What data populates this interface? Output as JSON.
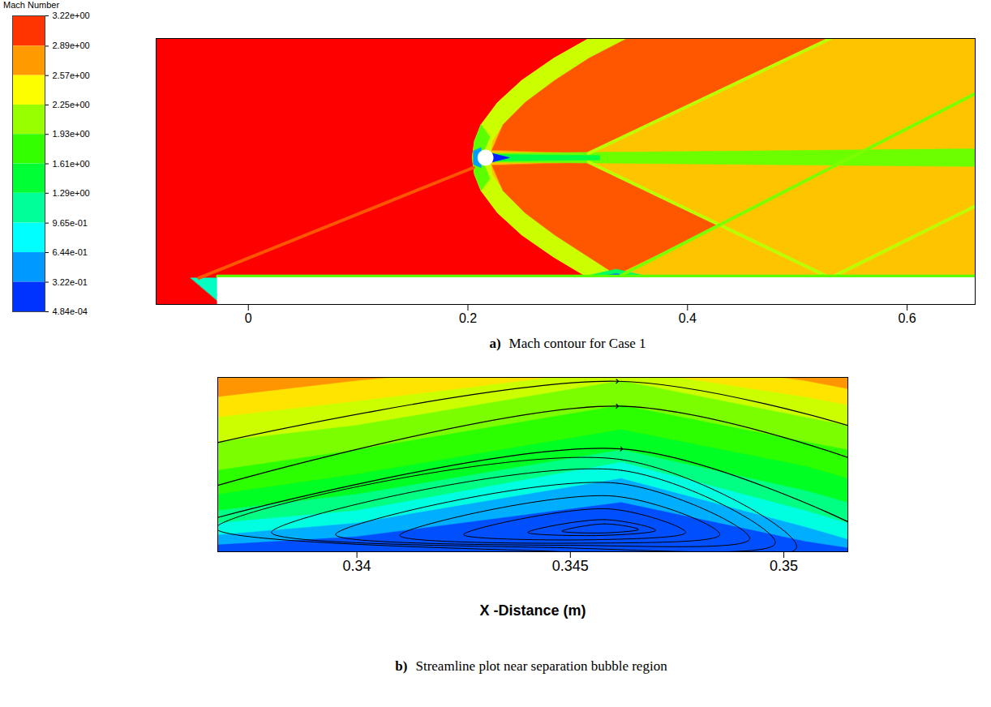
{
  "chart_data": [
    {
      "type": "contour",
      "caption_label": "a)",
      "caption": "Mach contour for Case 1",
      "xlim": [
        -0.084,
        0.662
      ],
      "ylim": [
        -0.024,
        0.217
      ],
      "xticks": [
        0,
        0.2,
        0.4,
        0.6
      ],
      "tick_labels": "x",
      "colorbar": {
        "title": "Mach Number",
        "range": [
          0.000484,
          3.22
        ],
        "ticks": [
          {
            "value": 3.22,
            "label": "3.22e+00"
          },
          {
            "value": 2.89,
            "label": "2.89e+00"
          },
          {
            "value": 2.57,
            "label": "2.57e+00"
          },
          {
            "value": 2.25,
            "label": "2.25e+00"
          },
          {
            "value": 1.93,
            "label": "1.93e+00"
          },
          {
            "value": 1.61,
            "label": "1.61e+00"
          },
          {
            "value": 1.29,
            "label": "1.29e+00"
          },
          {
            "value": 0.965,
            "label": "9.65e-01"
          },
          {
            "value": 0.644,
            "label": "6.44e-01"
          },
          {
            "value": 0.322,
            "label": "3.22e-01"
          },
          {
            "value": 0.000484,
            "label": "4.84e-04"
          }
        ]
      },
      "regions": [
        {
          "value": 3.22,
          "x": [
            -0.084,
            0.662,
            0.662,
            -0.084
          ],
          "y": [
            -0.024,
            -0.024,
            0.217,
            0.217
          ]
        },
        {
          "value": 2.6,
          "x": [
            0.31,
            0.278,
            0.249,
            0.227,
            0.212,
            0.206,
            0.204,
            0.206,
            0.212,
            0.227,
            0.249,
            0.278,
            0.31,
            0.662,
            0.662
          ],
          "y": [
            0.217,
            0.199,
            0.179,
            0.159,
            0.139,
            0.124,
            0.109,
            0.094,
            0.079,
            0.059,
            0.039,
            0.019,
            0.0,
            0.0,
            0.217
          ]
        },
        {
          "value": 2.25,
          "x": [
            0.31,
            0.278,
            0.249,
            0.227,
            0.212,
            0.206,
            0.204,
            0.206,
            0.212,
            0.227,
            0.249,
            0.278,
            0.31,
            0.345,
            0.31,
            0.279,
            0.252,
            0.232,
            0.222,
            0.22,
            0.222,
            0.232,
            0.252,
            0.279,
            0.31,
            0.345
          ],
          "y": [
            0.217,
            0.199,
            0.179,
            0.159,
            0.139,
            0.124,
            0.109,
            0.094,
            0.079,
            0.059,
            0.039,
            0.019,
            0.0,
            0.0,
            0.019,
            0.039,
            0.059,
            0.079,
            0.094,
            0.109,
            0.124,
            0.139,
            0.159,
            0.179,
            0.199,
            0.217
          ]
        },
        {
          "value": 2.95,
          "x": [
            0.222,
            0.232,
            0.252,
            0.279,
            0.31,
            0.345,
            0.53,
            0.31
          ],
          "y": [
            0.116,
            0.139,
            0.159,
            0.179,
            0.199,
            0.217,
            0.217,
            0.113
          ]
        },
        {
          "value": 2.95,
          "x": [
            0.222,
            0.232,
            0.252,
            0.279,
            0.31,
            0.335,
            0.429,
            0.31
          ],
          "y": [
            0.102,
            0.079,
            0.059,
            0.039,
            0.019,
            0.003,
            0.048,
            0.105
          ]
        },
        {
          "value": 1.95,
          "x": [
            0.222,
            0.662,
            0.662,
            0.222
          ],
          "y": [
            0.113,
            0.117,
            0.101,
            0.105
          ]
        },
        {
          "value": 1.4,
          "x": [
            0.222,
            0.32,
            0.32,
            0.222
          ],
          "y": [
            0.112,
            0.111,
            0.107,
            0.106
          ]
        },
        {
          "value": 0.1,
          "x": [
            0.222,
            0.238,
            0.222
          ],
          "y": [
            0.113,
            0.109,
            0.105
          ]
        },
        {
          "value": 1.9,
          "x": [
            0.206,
            0.204,
            0.206,
            0.212,
            0.22,
            0.216,
            0.212,
            0.216,
            0.22,
            0.212
          ],
          "y": [
            0.124,
            0.109,
            0.094,
            0.079,
            0.09,
            0.1,
            0.109,
            0.118,
            0.128,
            0.139
          ]
        },
        {
          "value": 0.5,
          "x": [
            0.205,
            0.205,
            0.212,
            0.212
          ],
          "y": [
            0.115,
            0.103,
            0.1,
            0.118
          ]
        },
        {
          "value": 1.3,
          "x": [
            0.3,
            0.335,
            0.37
          ],
          "y": [
            0.0,
            0.008,
            0.0
          ]
        },
        {
          "value": 0.3,
          "x": [
            0.312,
            0.335,
            0.358
          ],
          "y": [
            0.0,
            0.004,
            0.0
          ]
        },
        {
          "value": 1.0,
          "x": [
            -0.0525,
            -0.028,
            -0.028
          ],
          "y": [
            0.0,
            0.0,
            -0.0207
          ]
        }
      ],
      "lines": [
        {
          "value": 2.2,
          "x": [
            0.31,
            0.53
          ],
          "y": [
            0.113,
            0.217
          ]
        },
        {
          "value": 2.2,
          "x": [
            0.31,
            0.53,
            0.662
          ],
          "y": [
            0.105,
            0.0,
            0.065
          ]
        },
        {
          "value": 2.0,
          "x": [
            0.335,
            0.662
          ],
          "y": [
            0.0,
            0.167
          ]
        },
        {
          "value": 2.95,
          "x": [
            -0.045,
            0.205
          ],
          "y": [
            0.0,
            0.1
          ]
        },
        {
          "value": 1.9,
          "x": [
            -0.028,
            0.662
          ],
          "y": [
            0.0015,
            0.0015
          ]
        }
      ],
      "solids": [
        {
          "x": [
            -0.028,
            0.662,
            0.662,
            -0.028
          ],
          "y": [
            0.0,
            0.0,
            -0.024,
            -0.024
          ]
        }
      ],
      "cylinder": {
        "x": 0.216,
        "y": 0.109,
        "r": 0.0067
      }
    },
    {
      "type": "streamline",
      "caption_label": "b)",
      "caption": "Streamline plot near separation bubble region",
      "x_label": "X -Distance (m)",
      "xlim": [
        0.33674,
        0.3515
      ],
      "ylim": [
        0,
        0.00407
      ],
      "xticks": [
        0.34,
        0.345,
        0.35
      ],
      "tick_labels": "x",
      "layers": [
        {
          "value": 2.75,
          "x": [
            0.33674,
            0.34,
            0.3462,
            0.3505,
            0.3515
          ],
          "y": [
            0.00407,
            0.00407,
            0.00407,
            0.00407,
            0.00407
          ]
        },
        {
          "value": 2.5,
          "x": [
            0.33674,
            0.34,
            0.3462,
            0.3505,
            0.3515
          ],
          "y": [
            0.0036,
            0.00398,
            0.00455,
            0.00398,
            0.00379
          ]
        },
        {
          "value": 2.25,
          "x": [
            0.33674,
            0.34,
            0.3462,
            0.3505,
            0.3515
          ],
          "y": [
            0.00313,
            0.0035,
            0.00426,
            0.0036,
            0.00341
          ]
        },
        {
          "value": 2.0,
          "x": [
            0.33674,
            0.34,
            0.3462,
            0.3505,
            0.3515
          ],
          "y": [
            0.00256,
            0.00294,
            0.00398,
            0.00313,
            0.00294
          ]
        },
        {
          "value": 1.75,
          "x": [
            0.33674,
            0.34,
            0.3462,
            0.3505,
            0.3515
          ],
          "y": [
            0.00189,
            0.00237,
            0.00341,
            0.00256,
            0.00237
          ]
        },
        {
          "value": 1.5,
          "x": [
            0.33674,
            0.34,
            0.3462,
            0.3505,
            0.3515
          ],
          "y": [
            0.00133,
            0.0018,
            0.00284,
            0.00199,
            0.0017
          ]
        },
        {
          "value": 1.2,
          "x": [
            0.33674,
            0.34,
            0.3462,
            0.3505,
            0.3515
          ],
          "y": [
            0.00095,
            0.00133,
            0.00237,
            0.00142,
            0.00114
          ]
        },
        {
          "value": 0.9,
          "x": [
            0.33674,
            0.34,
            0.3462,
            0.3505,
            0.3515
          ],
          "y": [
            0.00066,
            0.00095,
            0.00208,
            0.00095,
            0.00066
          ]
        },
        {
          "value": 0.55,
          "x": [
            0.33674,
            0.34,
            0.3462,
            0.3505,
            0.3515
          ],
          "y": [
            0.00038,
            0.00066,
            0.0017,
            0.00057,
            0.00028
          ]
        },
        {
          "value": 0.25,
          "x": [
            0.33674,
            0.34,
            0.3462,
            0.3505,
            0.3515
          ],
          "y": [
            0.00015,
            0.00034,
            0.00114,
            0.00023,
            8e-05
          ]
        }
      ],
      "streamlines": [
        {
          "x": [
            0.33674,
            0.3461,
            0.3515
          ],
          "y": [
            0.00255,
            0.00398,
            0.00295
          ],
          "marker": "arrow"
        },
        {
          "x": [
            0.33674,
            0.3461,
            0.3515
          ],
          "y": [
            0.00155,
            0.0034,
            0.0022
          ],
          "marker": "arrow"
        },
        {
          "x": [
            0.33674,
            0.3462,
            0.3515
          ],
          "y": [
            0.0008,
            0.0024,
            0.0007
          ],
          "marker": "arrow"
        }
      ],
      "loops": [
        {
          "x": [
            0.3367,
            0.3462,
            0.3503,
            0.344
          ],
          "y": [
            0.00055,
            0.00215,
            0.0001,
            3e-05
          ]
        },
        {
          "x": [
            0.338,
            0.3462,
            0.3498,
            0.3445
          ],
          "y": [
            0.00045,
            0.0019,
            0.0002,
            0.0001
          ]
        },
        {
          "x": [
            0.3395,
            0.3461,
            0.3492,
            0.345
          ],
          "y": [
            0.0004,
            0.0016,
            0.0003,
            0.00015
          ]
        },
        {
          "x": [
            0.341,
            0.346,
            0.3485,
            0.3452
          ],
          "y": [
            0.00038,
            0.0013,
            0.0004,
            0.0002
          ]
        },
        {
          "x": [
            0.3425,
            0.3459,
            0.3477,
            0.3455
          ],
          "y": [
            0.0004,
            0.001,
            0.00045,
            0.00028
          ]
        },
        {
          "x": [
            0.344,
            0.3458,
            0.347,
            0.3457
          ],
          "y": [
            0.00045,
            0.00075,
            0.0005,
            0.00038
          ]
        },
        {
          "x": [
            0.3448,
            0.3458,
            0.3466,
            0.3458
          ],
          "y": [
            0.00048,
            0.00065,
            0.00052,
            0.00044
          ]
        }
      ]
    }
  ]
}
